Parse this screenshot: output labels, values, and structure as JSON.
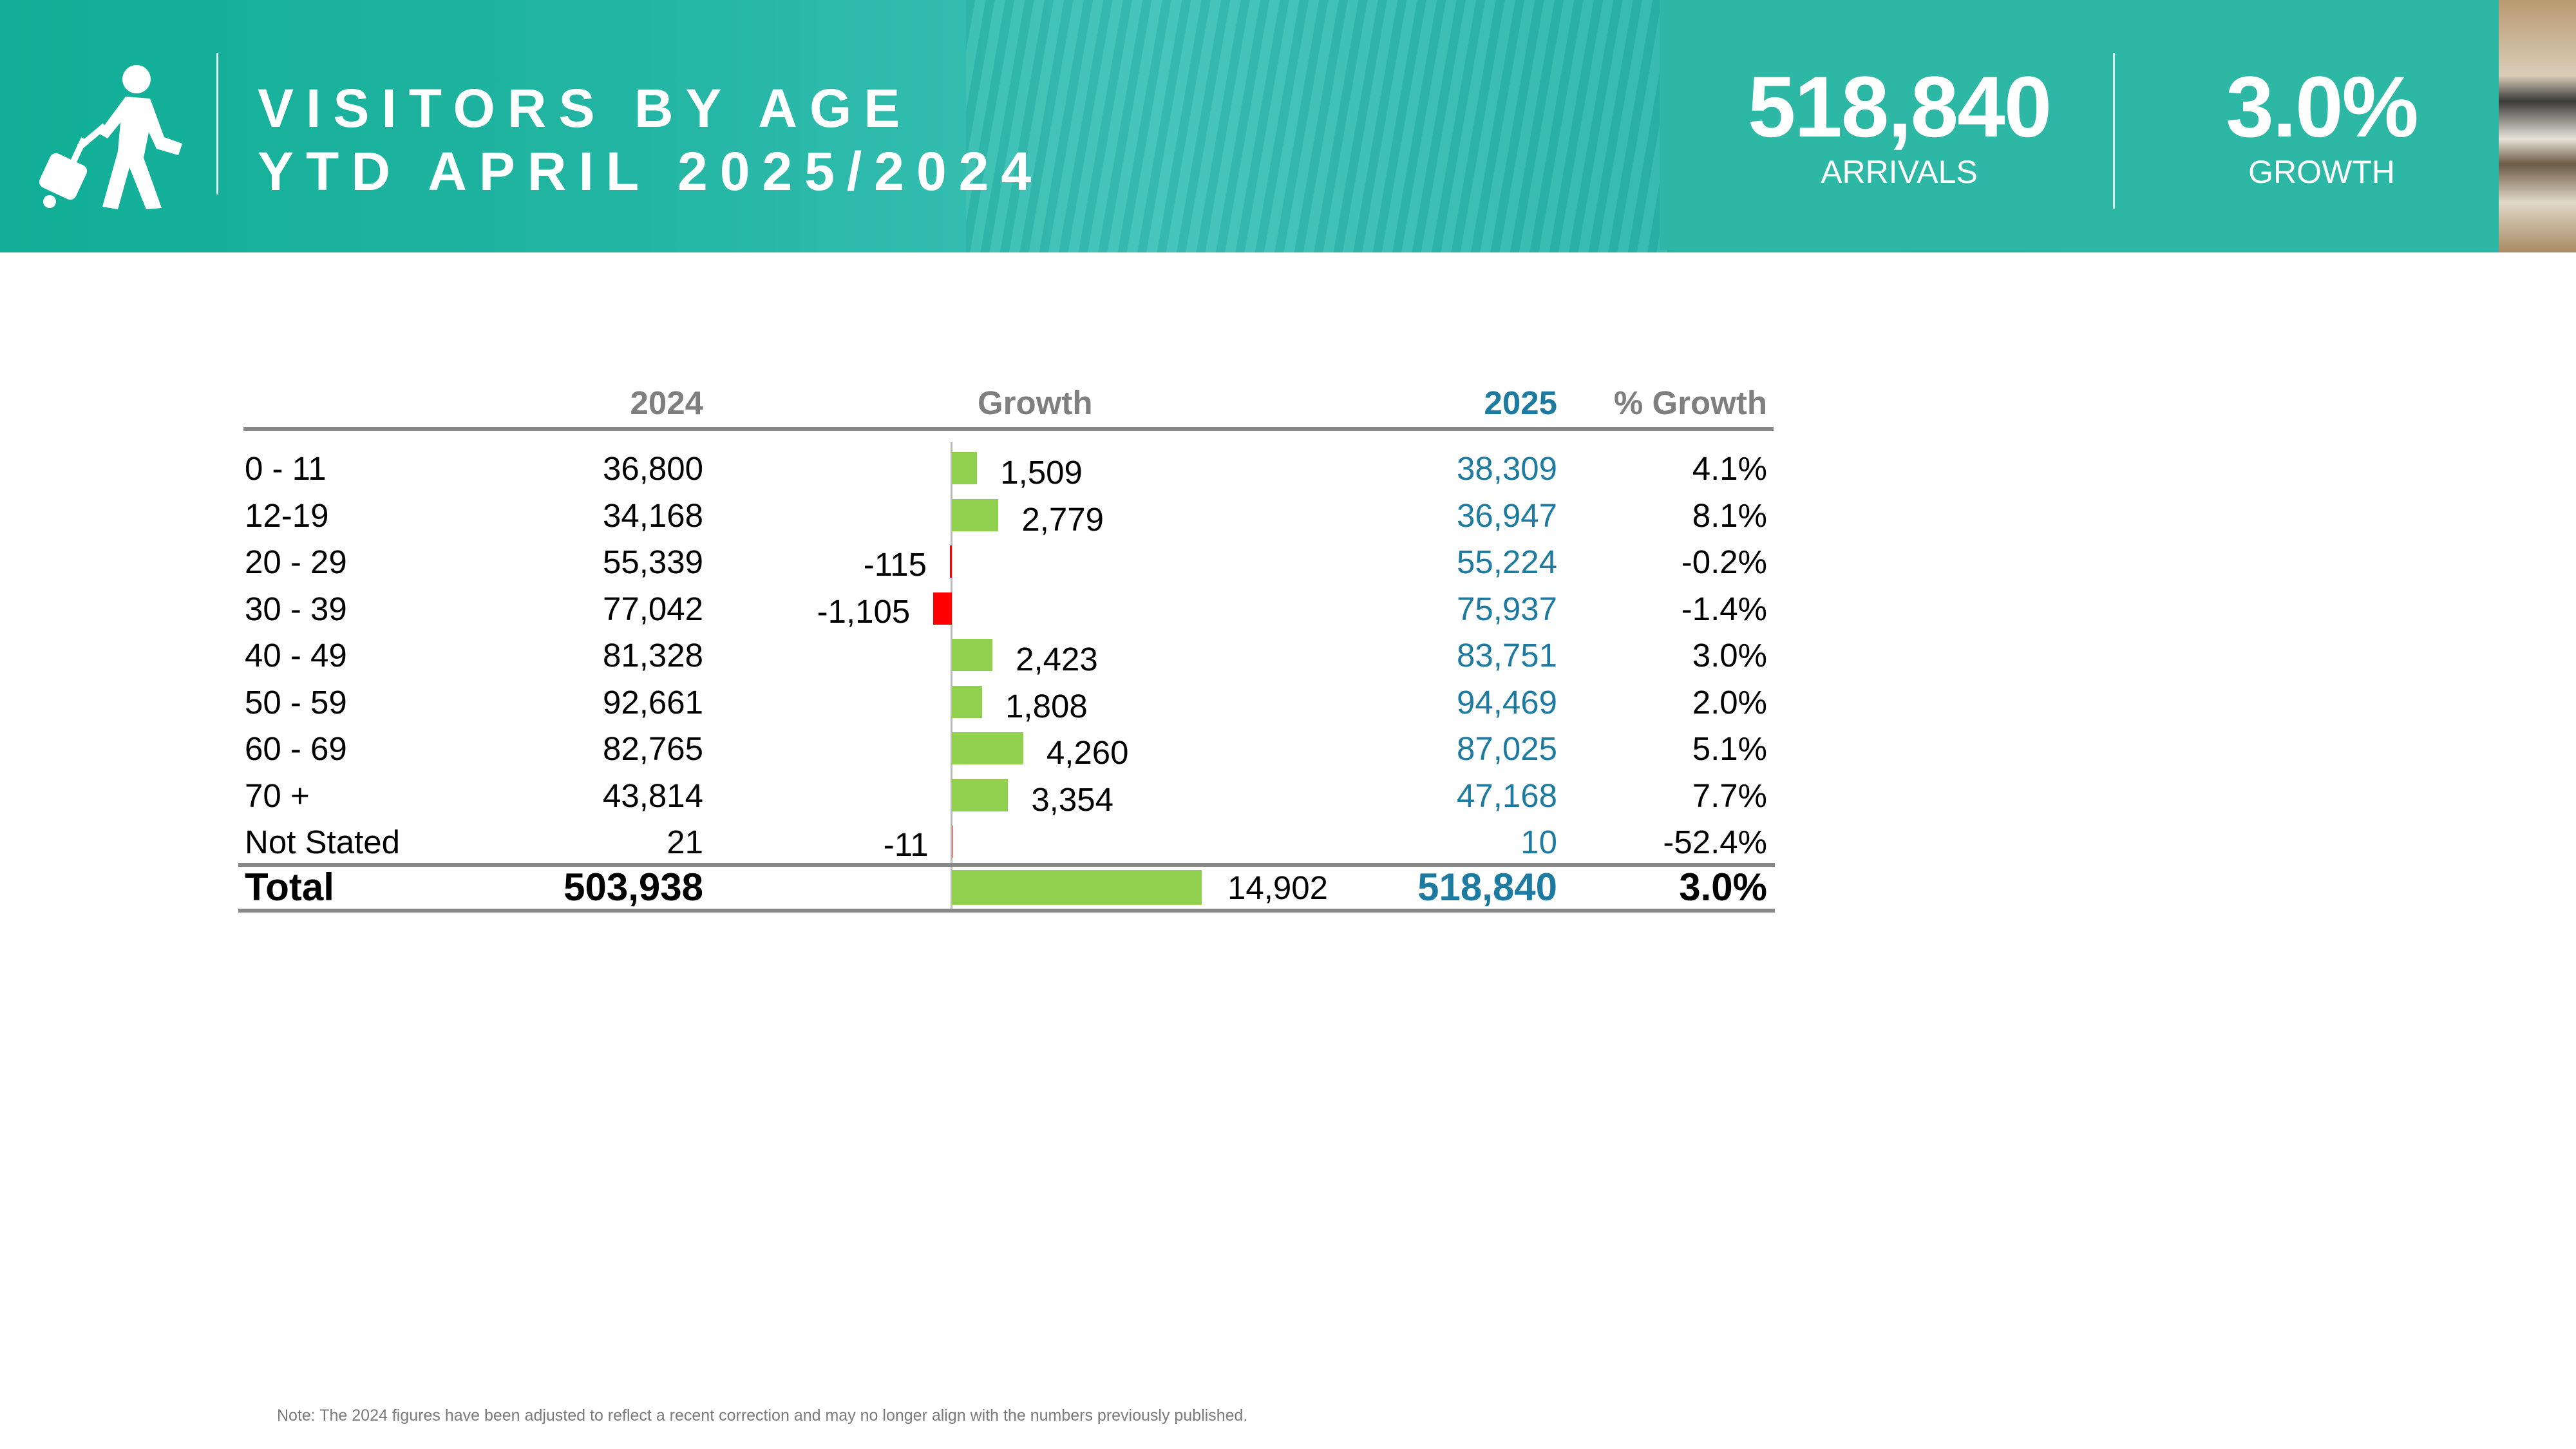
{
  "header": {
    "title_line1": "VISITORS BY AGE",
    "title_line2": "YTD APRIL 2025/2024",
    "icon": "traveler-with-luggage-icon",
    "kpis": [
      {
        "value": "518,840",
        "label": "ARRIVALS"
      },
      {
        "value": "3.0%",
        "label": "GROWTH"
      }
    ]
  },
  "table": {
    "headers": {
      "y2024": "2024",
      "growth": "Growth",
      "y2025": "2025",
      "pct": "% Growth"
    },
    "rows": [
      {
        "label": "0 - 11",
        "y2024": "36,800",
        "growth": "1,509",
        "growth_value": 1509,
        "y2025": "38,309",
        "pct": "4.1%"
      },
      {
        "label": "12-19",
        "y2024": "34,168",
        "growth": "2,779",
        "growth_value": 2779,
        "y2025": "36,947",
        "pct": "8.1%"
      },
      {
        "label": "20 - 29",
        "y2024": "55,339",
        "growth": "-115",
        "growth_value": -115,
        "y2025": "55,224",
        "pct": "-0.2%"
      },
      {
        "label": "30 - 39",
        "y2024": "77,042",
        "growth": "-1,105",
        "growth_value": -1105,
        "y2025": "75,937",
        "pct": "-1.4%"
      },
      {
        "label": "40 - 49",
        "y2024": "81,328",
        "growth": "2,423",
        "growth_value": 2423,
        "y2025": "83,751",
        "pct": "3.0%"
      },
      {
        "label": "50 - 59",
        "y2024": "92,661",
        "growth": "1,808",
        "growth_value": 1808,
        "y2025": "94,469",
        "pct": "2.0%"
      },
      {
        "label": "60 - 69",
        "y2024": "82,765",
        "growth": "4,260",
        "growth_value": 4260,
        "y2025": "87,025",
        "pct": "5.1%"
      },
      {
        "label": "70 +",
        "y2024": "43,814",
        "growth": "3,354",
        "growth_value": 3354,
        "y2025": "47,168",
        "pct": "7.7%"
      },
      {
        "label": "Not Stated",
        "y2024": "21",
        "growth": "-11",
        "growth_value": -11,
        "y2025": "10",
        "pct": "-52.4%"
      }
    ],
    "total": {
      "label": "Total",
      "y2024": "503,938",
      "growth": "14,902",
      "growth_value": 14902,
      "y2025": "518,840",
      "pct": "3.0%"
    },
    "colors": {
      "positive": "#92d050",
      "negative": "#ff0000",
      "y2025": "#1d7aa0"
    }
  },
  "note": "Note: The 2024 figures have been adjusted to reflect a recent correction and may no longer align with the numbers previously published."
}
